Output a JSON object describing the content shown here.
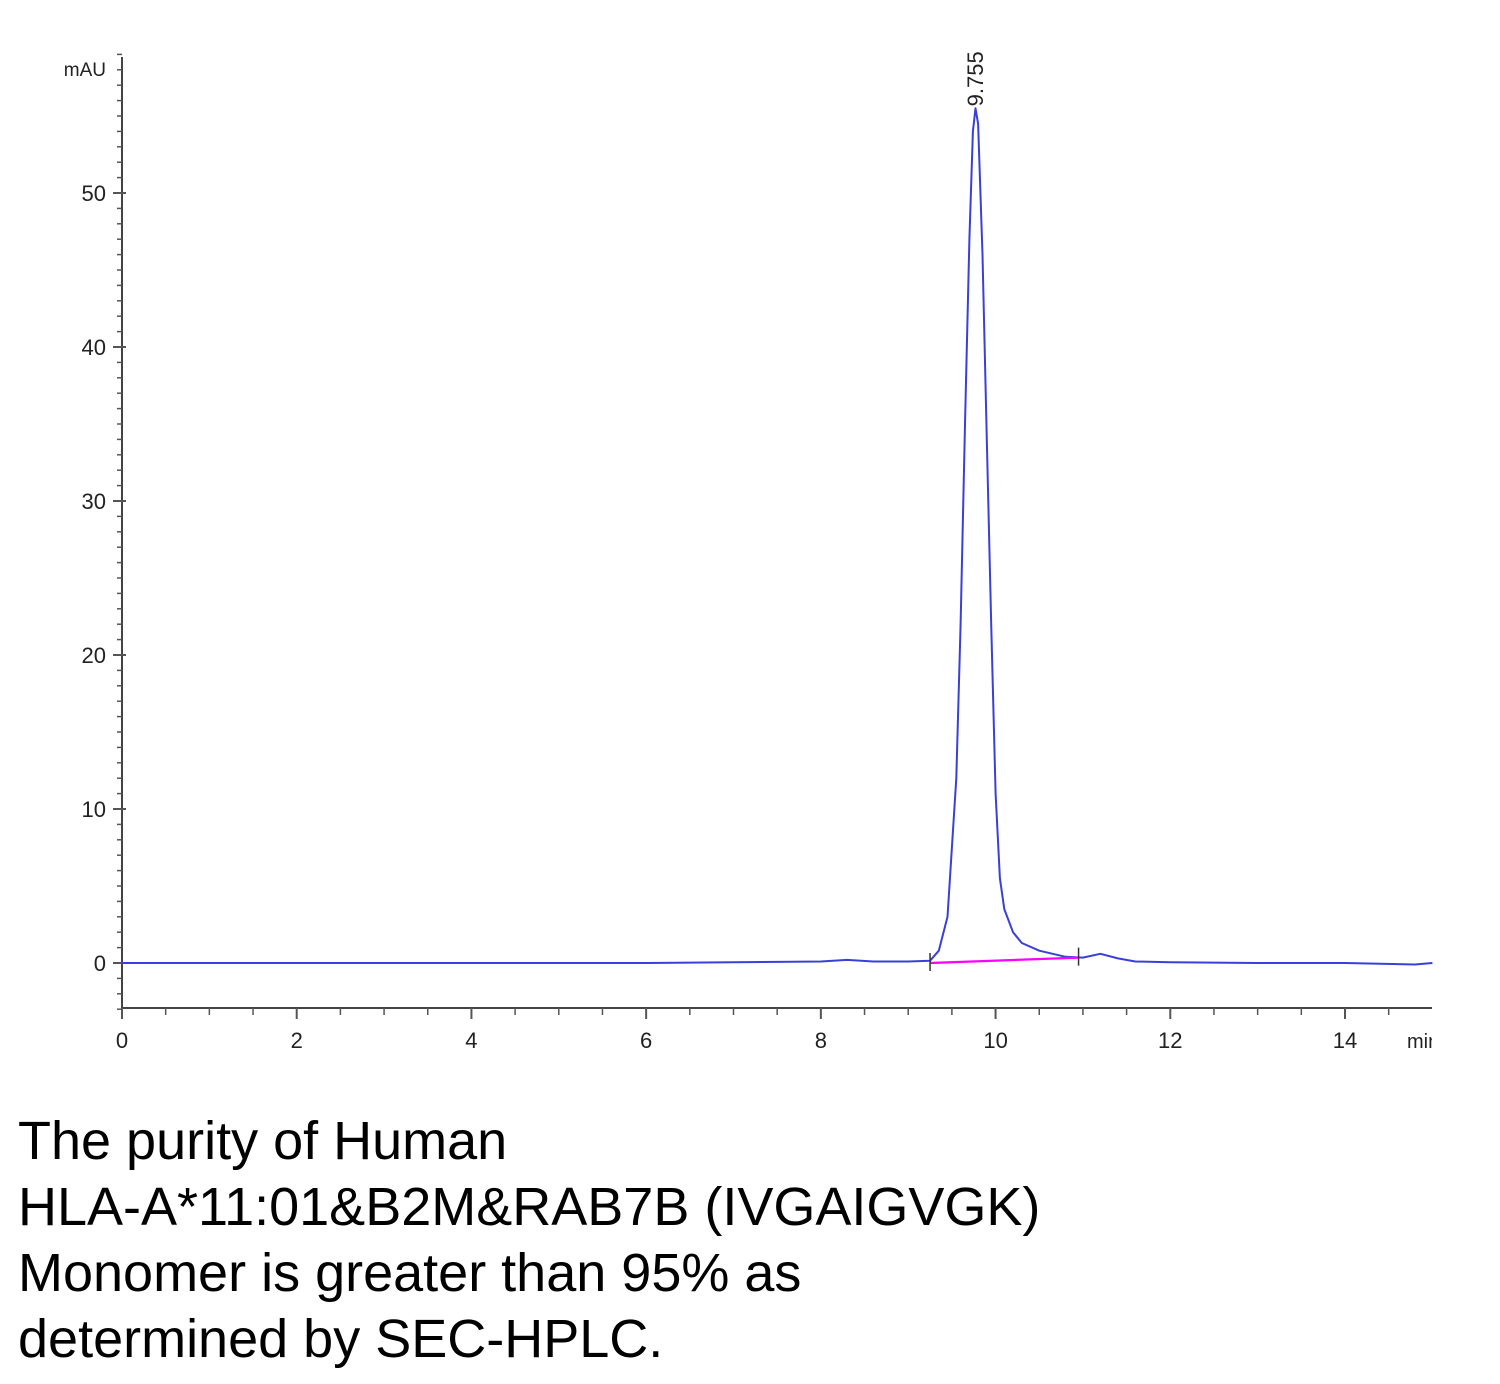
{
  "chart_data": {
    "type": "line",
    "title": "",
    "xlabel": "",
    "ylabel": "",
    "x_unit": "min",
    "y_unit": "mAU",
    "xlim": [
      0,
      15
    ],
    "ylim": [
      -3,
      59
    ],
    "x_ticks": [
      0,
      2,
      4,
      6,
      8,
      10,
      12,
      14
    ],
    "y_ticks": [
      0,
      10,
      20,
      30,
      40,
      50
    ],
    "grid": false,
    "series": [
      {
        "color": "#3a3fd8",
        "x": [
          0,
          2,
          4,
          6,
          7,
          8,
          8.3,
          8.6,
          9.0,
          9.25,
          9.35,
          9.45,
          9.55,
          9.6,
          9.65,
          9.7,
          9.74,
          9.77,
          9.8,
          9.85,
          9.9,
          9.95,
          10.0,
          10.05,
          10.1,
          10.2,
          10.3,
          10.5,
          10.8,
          11.0,
          11.2,
          11.4,
          11.6,
          12.0,
          13.0,
          14.0,
          14.8,
          15.0
        ],
        "y": [
          0,
          0,
          0,
          0,
          0.05,
          0.1,
          0.2,
          0.1,
          0.1,
          0.15,
          0.8,
          3.0,
          12.0,
          22.0,
          35.0,
          47.0,
          54.0,
          55.5,
          54.5,
          46.0,
          34.0,
          22.0,
          11.0,
          5.5,
          3.5,
          2.0,
          1.3,
          0.8,
          0.4,
          0.35,
          0.6,
          0.3,
          0.1,
          0.05,
          0,
          0,
          -0.1,
          0
        ]
      },
      {
        "color": "#ff00ff",
        "x": [
          9.25,
          10.95
        ],
        "y": [
          0.0,
          0.35
        ]
      }
    ],
    "annotations": [
      {
        "text": "9.755",
        "x": 9.755,
        "y": 55.5
      }
    ]
  },
  "caption_lines": [
    "The purity of Human",
    "HLA-A*11:01&B2M&RAB7B (IVGAIGVGK)",
    "Monomer is greater than 95% as",
    "determined by SEC-HPLC."
  ]
}
